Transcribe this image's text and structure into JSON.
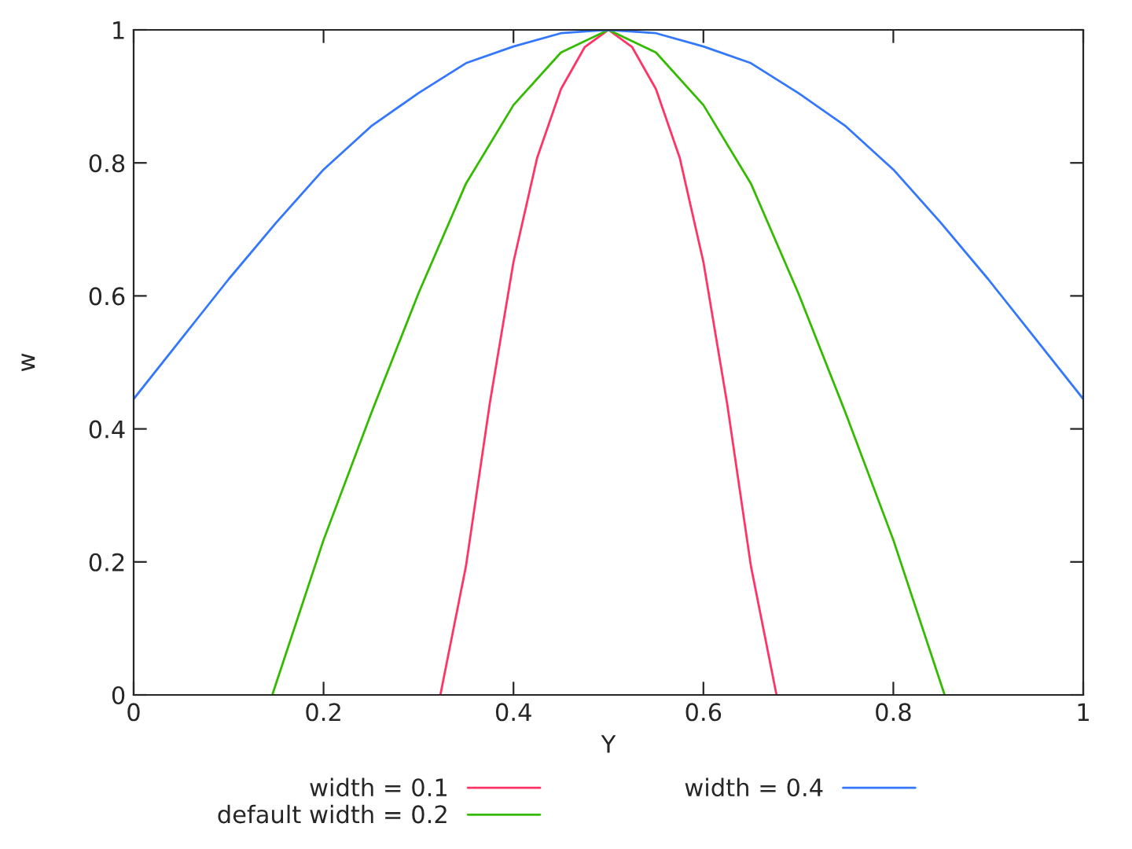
{
  "chart_data": {
    "type": "line",
    "xlabel": "Y",
    "ylabel": "w",
    "xlim": [
      0,
      1
    ],
    "ylim": [
      0,
      1
    ],
    "xticks": [
      0,
      0.2,
      0.4,
      0.6,
      0.8,
      1
    ],
    "yticks": [
      0,
      0.2,
      0.4,
      0.6,
      0.8,
      1
    ],
    "grid": false,
    "legend": "bottom",
    "marker": "none",
    "line_style": "solid",
    "series": [
      {
        "name": "width = 0.1",
        "color": "#ff3366",
        "x": [
          0.323,
          0.35,
          0.375,
          0.4,
          0.425,
          0.45,
          0.475,
          0.5,
          0.525,
          0.55,
          0.575,
          0.6,
          0.625,
          0.65,
          0.677
        ],
        "values": [
          0,
          0.194,
          0.438,
          0.651,
          0.808,
          0.911,
          0.974,
          1,
          0.974,
          0.911,
          0.808,
          0.651,
          0.438,
          0.194,
          0
        ]
      },
      {
        "name": "default width = 0.2",
        "color": "#33bb00",
        "x": [
          0.146,
          0.2,
          0.25,
          0.3,
          0.35,
          0.4,
          0.45,
          0.5,
          0.55,
          0.6,
          0.65,
          0.7,
          0.75,
          0.8,
          0.854
        ],
        "values": [
          0,
          0.233,
          0.423,
          0.604,
          0.769,
          0.887,
          0.966,
          1,
          0.966,
          0.887,
          0.769,
          0.604,
          0.423,
          0.233,
          0
        ]
      },
      {
        "name": "width = 0.4",
        "color": "#3377ff",
        "x": [
          0,
          0.05,
          0.1,
          0.15,
          0.2,
          0.25,
          0.3,
          0.35,
          0.4,
          0.45,
          0.5,
          0.55,
          0.6,
          0.65,
          0.7,
          0.75,
          0.8,
          0.85,
          0.9,
          0.95,
          1
        ],
        "values": [
          0.445,
          0.535,
          0.625,
          0.71,
          0.79,
          0.855,
          0.905,
          0.95,
          0.975,
          0.995,
          1,
          0.995,
          0.975,
          0.95,
          0.905,
          0.855,
          0.79,
          0.71,
          0.625,
          0.535,
          0.445
        ]
      }
    ]
  }
}
